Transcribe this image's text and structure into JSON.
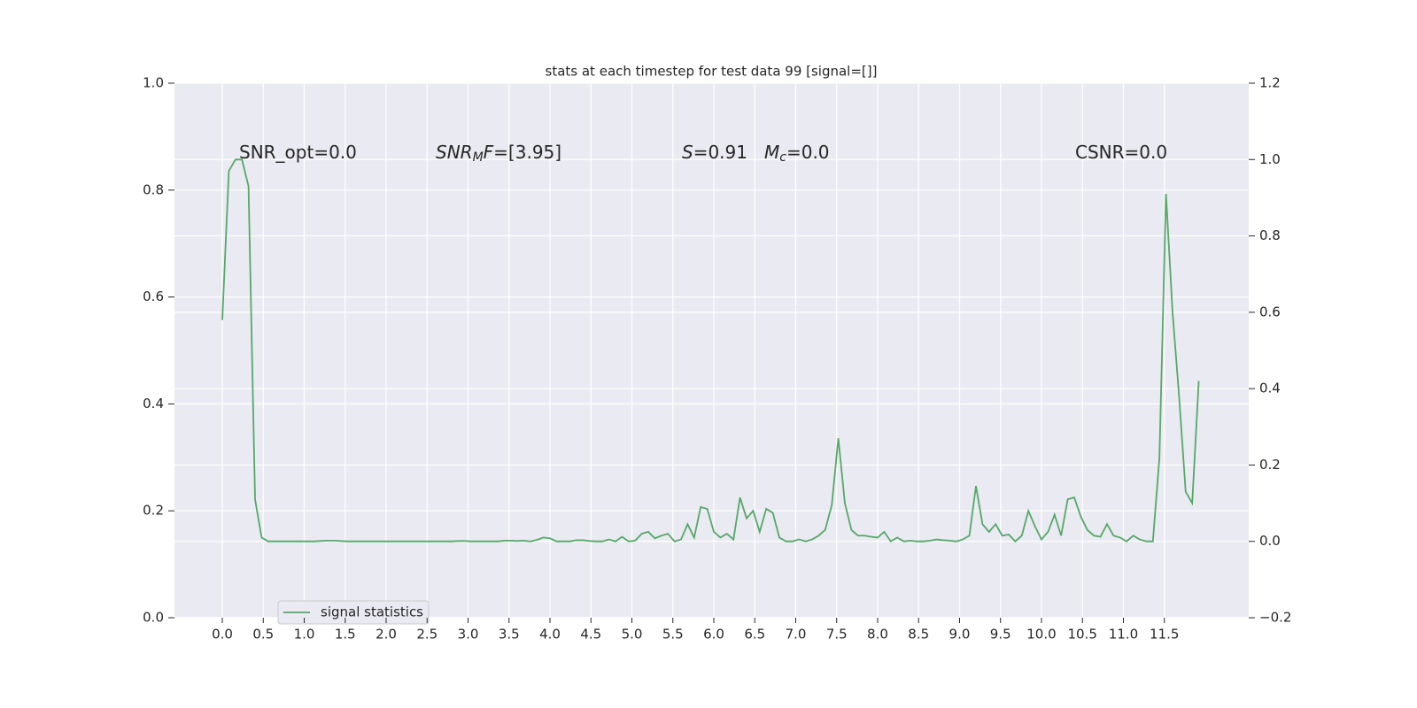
{
  "chart_data": {
    "type": "line",
    "title": "stats at each timestep for test data 99 [signal=[]]",
    "x": [
      0,
      0.08,
      0.16,
      0.24,
      0.32,
      0.4,
      0.48,
      0.56,
      0.64,
      0.72,
      0.8,
      0.88,
      0.96,
      1.04,
      1.12,
      1.2,
      1.28,
      1.36,
      1.44,
      1.52,
      1.6,
      1.68,
      1.76,
      1.84,
      1.92,
      2,
      2.08,
      2.16,
      2.24,
      2.32,
      2.4,
      2.48,
      2.56,
      2.64,
      2.72,
      2.8,
      2.88,
      2.96,
      3.04,
      3.12,
      3.2,
      3.28,
      3.36,
      3.44,
      3.52,
      3.6,
      3.68,
      3.76,
      3.84,
      3.92,
      4,
      4.08,
      4.16,
      4.24,
      4.32,
      4.4,
      4.48,
      4.56,
      4.64,
      4.72,
      4.8,
      4.88,
      4.96,
      5.04,
      5.12,
      5.2,
      5.28,
      5.36,
      5.44,
      5.52,
      5.6,
      5.68,
      5.76,
      5.84,
      5.92,
      6,
      6.08,
      6.16,
      6.24,
      6.32,
      6.4,
      6.48,
      6.56,
      6.64,
      6.72,
      6.8,
      6.88,
      6.96,
      7.04,
      7.12,
      7.2,
      7.28,
      7.36,
      7.44,
      7.52,
      7.6,
      7.68,
      7.76,
      7.84,
      7.92,
      8,
      8.08,
      8.16,
      8.24,
      8.32,
      8.4,
      8.48,
      8.56,
      8.64,
      8.72,
      8.8,
      8.88,
      8.96,
      9.04,
      9.12,
      9.2,
      9.28,
      9.36,
      9.44,
      9.52,
      9.6,
      9.68,
      9.76,
      9.84,
      9.92,
      10,
      10.08,
      10.16,
      10.24,
      10.32,
      10.4,
      10.48,
      10.56,
      10.64,
      10.72,
      10.8,
      10.88,
      10.96,
      11.04,
      11.12,
      11.2,
      11.28,
      11.36,
      11.44,
      11.52,
      11.6,
      11.68,
      11.76,
      11.84,
      11.92
    ],
    "series": [
      {
        "name": "signal statistics",
        "color": "#55a868",
        "axis": "y2",
        "values": [
          0.58,
          0.97,
          1.0,
          1.0,
          0.93,
          0.11,
          0.01,
          0.0,
          0.0,
          0.0,
          0.0,
          0.0,
          0.0,
          0.0,
          0.0,
          0.001,
          0.002,
          0.002,
          0.001,
          0.0,
          0.0,
          0.0,
          0.0,
          0.0,
          0.0,
          0.0,
          0.0,
          0.0,
          0.0,
          0.0,
          0.0,
          0.0,
          0.0,
          0.0,
          0.0,
          0.0,
          0.001,
          0.001,
          0.0,
          0.0,
          0.0,
          0.0,
          0.0,
          0.002,
          0.002,
          0.001,
          0.002,
          0.0,
          0.004,
          0.01,
          0.008,
          0.0,
          0.0,
          0.0,
          0.003,
          0.003,
          0.001,
          0.0,
          0.0,
          0.005,
          0.0,
          0.012,
          0.0,
          0.002,
          0.02,
          0.025,
          0.008,
          0.015,
          0.02,
          0.0,
          0.005,
          0.045,
          0.01,
          0.09,
          0.085,
          0.025,
          0.01,
          0.02,
          0.005,
          0.115,
          0.06,
          0.08,
          0.025,
          0.085,
          0.075,
          0.01,
          0.0,
          0.0,
          0.005,
          0.0,
          0.005,
          0.015,
          0.03,
          0.095,
          0.27,
          0.1,
          0.03,
          0.015,
          0.015,
          0.012,
          0.01,
          0.025,
          0.0,
          0.01,
          0.0,
          0.002,
          0.0,
          0.0,
          0.002,
          0.005,
          0.003,
          0.002,
          0.0,
          0.005,
          0.015,
          0.145,
          0.045,
          0.025,
          0.045,
          0.015,
          0.018,
          0.0,
          0.015,
          0.08,
          0.04,
          0.005,
          0.025,
          0.07,
          0.015,
          0.11,
          0.115,
          0.065,
          0.03,
          0.015,
          0.012,
          0.045,
          0.015,
          0.01,
          0.0,
          0.015,
          0.005,
          0.0,
          0.0,
          0.22,
          0.91,
          0.6,
          0.38,
          0.13,
          0.1,
          0.42
        ]
      }
    ],
    "xlim": [
      -0.584,
      12.53
    ],
    "xticks": [
      {
        "value": 0,
        "label": "0.0"
      },
      0.5,
      {
        "value": 1,
        "label": "1.0"
      },
      1.5,
      {
        "value": 2,
        "label": "2.0"
      },
      2.5,
      {
        "value": 3,
        "label": "3.0"
      },
      3.5,
      {
        "value": 4,
        "label": "4.0"
      },
      4.5,
      {
        "value": 5,
        "label": "5.0"
      },
      5.5,
      {
        "value": 6,
        "label": "6.0"
      },
      6.5,
      {
        "value": 7,
        "label": "7.0"
      },
      7.5,
      {
        "value": 8,
        "label": "8.0"
      },
      8.5,
      {
        "value": 9,
        "label": "9.0"
      },
      9.5,
      {
        "value": 10,
        "label": "10.0"
      },
      10.5,
      {
        "value": 11,
        "label": "11.0"
      },
      11.5
    ],
    "ylim": [
      0,
      1
    ],
    "yticks": [
      {
        "value": 0,
        "label": "0.0"
      },
      0.2,
      0.4,
      0.6,
      0.8,
      {
        "value": 1,
        "label": "1.0"
      }
    ],
    "y2lim": [
      -0.2,
      1.2
    ],
    "y2ticks": [
      {
        "value": -0.2,
        "label": "−0.2"
      },
      {
        "value": 0,
        "label": "0.0"
      },
      0.2,
      0.4,
      0.6,
      0.8,
      {
        "value": 1,
        "label": "1.0"
      },
      1.2
    ],
    "grid": true,
    "legend": "lower left",
    "annotations": [
      [
        {
          "text": "SNR_opt=0.0",
          "italic": false,
          "sub": false
        }
      ],
      [
        {
          "text": "SNR",
          "italic": true,
          "sub": false
        },
        {
          "text": "M",
          "italic": true,
          "sub": true
        },
        {
          "text": "F",
          "italic": true,
          "sub": false
        },
        {
          "text": "=[3.95]",
          "italic": false,
          "sub": false
        }
      ],
      [
        {
          "text": "S",
          "italic": true,
          "sub": false
        },
        {
          "text": "=0.91",
          "italic": false,
          "sub": false
        }
      ],
      [
        {
          "text": "M",
          "italic": true,
          "sub": false
        },
        {
          "text": "c",
          "italic": true,
          "sub": true
        },
        {
          "text": "=0.0",
          "italic": false,
          "sub": false
        }
      ],
      [
        {
          "text": "CSNR=0.0",
          "italic": false,
          "sub": false
        }
      ]
    ]
  }
}
